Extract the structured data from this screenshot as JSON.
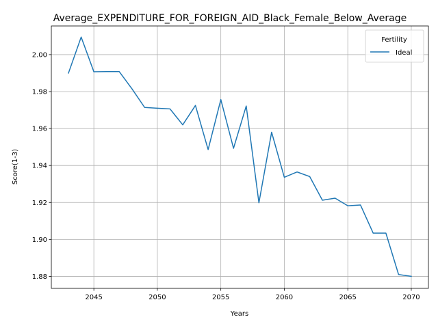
{
  "chart_data": {
    "type": "line",
    "title": "Average_EXPENDITURE_FOR_FOREIGN_AID_Black_Female_Below_Average",
    "xlabel": "Years",
    "ylabel": "Score(1-3)",
    "xlim": [
      2041.65,
      2071.35
    ],
    "ylim": [
      1.8735,
      2.0155
    ],
    "xticks": [
      2045,
      2050,
      2055,
      2060,
      2065,
      2070
    ],
    "yticks": [
      1.88,
      1.9,
      1.92,
      1.94,
      1.96,
      1.98,
      2.0
    ],
    "ytick_labels": [
      "1.88",
      "1.90",
      "1.92",
      "1.94",
      "1.96",
      "1.98",
      "2.00"
    ],
    "grid": true,
    "legend": {
      "title": "Fertility",
      "placement": "top-right"
    },
    "series": [
      {
        "name": "Ideal",
        "color": "#1f77b4",
        "x": [
          2043,
          2044,
          2045,
          2046,
          2047,
          2048,
          2049,
          2050,
          2051,
          2052,
          2053,
          2054,
          2055,
          2056,
          2057,
          2058,
          2059,
          2060,
          2061,
          2062,
          2063,
          2064,
          2065,
          2066,
          2067,
          2068,
          2069,
          2070
        ],
        "y": [
          1.99,
          2.0095,
          1.9907,
          1.9908,
          1.9908,
          1.9815,
          1.9714,
          1.971,
          1.9706,
          1.962,
          1.9725,
          1.9486,
          1.9757,
          1.9493,
          1.9722,
          1.9198,
          1.958,
          1.9336,
          1.9365,
          1.934,
          1.9212,
          1.9223,
          1.9182,
          1.9186,
          1.9034,
          1.9034,
          1.881,
          1.88
        ]
      }
    ]
  }
}
